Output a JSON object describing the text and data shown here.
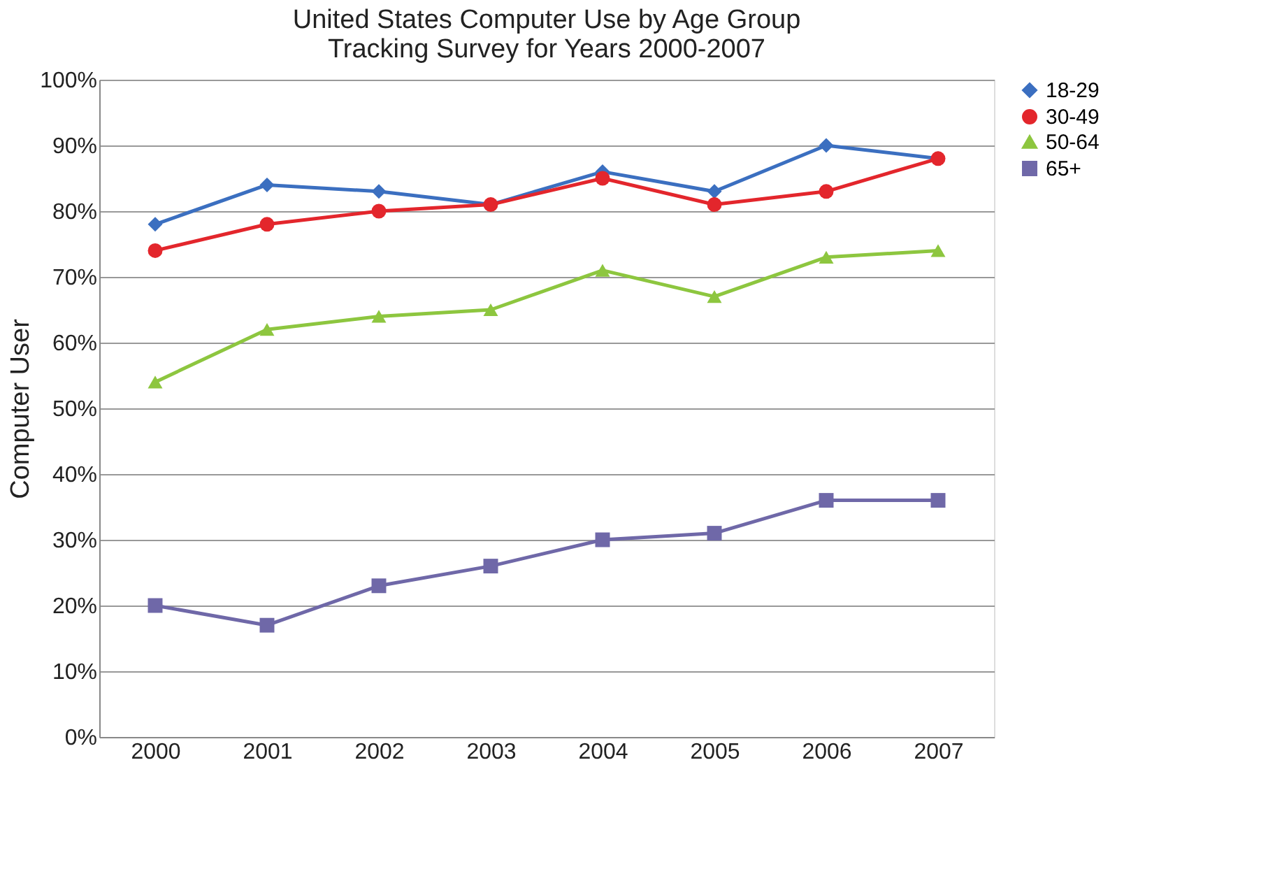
{
  "chart_data": {
    "type": "line",
    "title": [
      "United States Computer Use by Age Group",
      "Tracking Survey for Years 2000-2007"
    ],
    "ylabel": "Computer User",
    "categories": [
      "2000",
      "2001",
      "2002",
      "2003",
      "2004",
      "2005",
      "2006",
      "2007"
    ],
    "series": [
      {
        "name": "18-29",
        "color": "#3b6fc0",
        "marker": "diamond",
        "values": [
          78,
          84,
          83,
          81,
          86,
          83,
          90,
          88
        ]
      },
      {
        "name": "30-49",
        "color": "#e3262c",
        "marker": "circle",
        "values": [
          74,
          78,
          80,
          81,
          85,
          81,
          83,
          88
        ]
      },
      {
        "name": "50-64",
        "color": "#8dc63f",
        "marker": "triangle",
        "values": [
          54,
          62,
          64,
          65,
          71,
          67,
          73,
          74
        ]
      },
      {
        "name": "65+",
        "color": "#6f68a8",
        "marker": "square",
        "values": [
          20,
          17,
          23,
          26,
          30,
          31,
          36,
          36
        ]
      }
    ],
    "ylim": [
      0,
      100
    ],
    "yticks": [
      {
        "value": 0,
        "label": "0%"
      },
      {
        "value": 10,
        "label": "10%"
      },
      {
        "value": 20,
        "label": "20%"
      },
      {
        "value": 30,
        "label": "30%"
      },
      {
        "value": 40,
        "label": "40%"
      },
      {
        "value": 50,
        "label": "50%"
      },
      {
        "value": 60,
        "label": "60%"
      },
      {
        "value": 70,
        "label": "70%"
      },
      {
        "value": 80,
        "label": "80%"
      },
      {
        "value": 90,
        "label": "90%"
      },
      {
        "value": 100,
        "label": "100%"
      }
    ],
    "grid": "y",
    "legend": "right",
    "line_style": "solid"
  }
}
